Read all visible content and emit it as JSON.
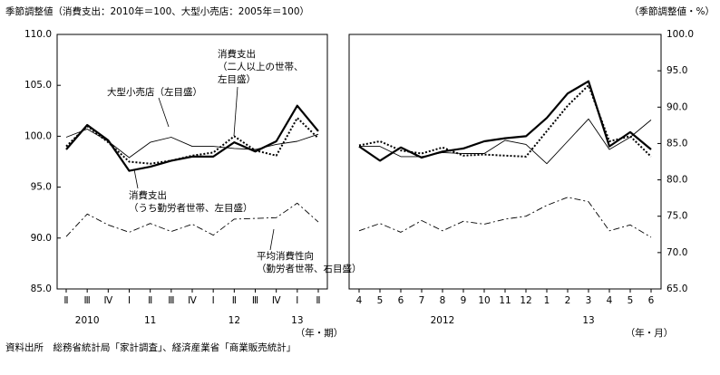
{
  "chart_data": [
    {
      "type": "line",
      "title": "季節調整値（消費支出：2010年＝100、大型小売店：2005年＝100）",
      "x_unit": "（年・期）",
      "categories": [
        "Ⅱ",
        "Ⅲ",
        "Ⅳ",
        "Ⅰ",
        "Ⅱ",
        "Ⅲ",
        "Ⅳ",
        "Ⅰ",
        "Ⅱ",
        "Ⅲ",
        "Ⅳ",
        "Ⅰ",
        "Ⅱ"
      ],
      "year_labels": [
        {
          "label": "2010",
          "at": 1
        },
        {
          "label": "11",
          "at": 4
        },
        {
          "label": "12",
          "at": 8
        },
        {
          "label": "13",
          "at": 11
        }
      ],
      "ylim": [
        85,
        110
      ],
      "yticks": [
        {
          "value": 85,
          "label": "85.0"
        },
        {
          "value": 90,
          "label": "90.0"
        },
        {
          "value": 95,
          "label": "95.0"
        },
        {
          "value": 100,
          "label": "100.0"
        },
        {
          "value": 105,
          "label": "105.0"
        },
        {
          "value": 110,
          "label": "110.0"
        }
      ],
      "y2lim": [
        65,
        100
      ],
      "series": [
        {
          "name": [
            "大型小売店（左目盛）"
          ],
          "color": "#000000",
          "style": "solid",
          "width": 0.9,
          "values": [
            99.9,
            100.7,
            99.5,
            97.9,
            99.4,
            99.9,
            99.0,
            99.0,
            98.8,
            98.7,
            99.2,
            99.5,
            100.2
          ]
        },
        {
          "name": [
            "消費支出",
            "（二人以上の世帯、",
            "左目盛）"
          ],
          "color": "#000000",
          "style": "dotted",
          "width": 2,
          "values": [
            99.0,
            101.0,
            99.4,
            97.5,
            97.3,
            97.6,
            98.1,
            98.4,
            100.0,
            98.6,
            98.1,
            101.8,
            99.8
          ]
        },
        {
          "name": [
            "消費支出",
            "（うち勤労者世帯、左目盛）"
          ],
          "color": "#000000",
          "style": "solid",
          "width": 2.2,
          "values": [
            98.7,
            101.1,
            99.6,
            96.6,
            97.0,
            97.6,
            98.0,
            98.0,
            99.4,
            98.5,
            99.5,
            103.0,
            100.5
          ]
        },
        {
          "name": [
            "平均消費性向",
            "（勤労者世帯、右目盛）"
          ],
          "color": "#000000",
          "style": "dashdot",
          "width": 0.9,
          "axis": "y2",
          "values": [
            72.2,
            75.3,
            73.8,
            72.8,
            74.0,
            72.9,
            73.9,
            72.4,
            74.6,
            74.7,
            74.8,
            76.8,
            74.2
          ]
        }
      ]
    },
    {
      "type": "line",
      "y2_label": "（季節調整値・%）",
      "x_unit": "（年・月）",
      "categories": [
        "4",
        "5",
        "6",
        "7",
        "8",
        "9",
        "10",
        "11",
        "12",
        "1",
        "2",
        "3",
        "4",
        "5",
        "6"
      ],
      "year_labels": [
        {
          "label": "2012",
          "at": 4
        },
        {
          "label": "13",
          "at": 11
        }
      ],
      "ylim": [
        85,
        110
      ],
      "y2lim": [
        65,
        100
      ],
      "y2ticks": [
        {
          "value": 65,
          "label": "65.0"
        },
        {
          "value": 70,
          "label": "70.0"
        },
        {
          "value": 75,
          "label": "75.0"
        },
        {
          "value": 80,
          "label": "80.0"
        },
        {
          "value": 85,
          "label": "85.0"
        },
        {
          "value": 90,
          "label": "90.0"
        },
        {
          "value": 95,
          "label": "95.0"
        },
        {
          "value": 100,
          "label": "100.0"
        }
      ],
      "series": [
        {
          "color": "#000000",
          "style": "solid",
          "width": 0.9,
          "values": [
            99.0,
            99.0,
            98.0,
            98.0,
            98.4,
            98.3,
            98.3,
            99.6,
            99.2,
            97.3,
            99.5,
            101.7,
            98.7,
            99.9,
            101.6
          ]
        },
        {
          "color": "#000000",
          "style": "dotted",
          "width": 2,
          "values": [
            99.1,
            99.5,
            98.6,
            98.3,
            98.9,
            98.1,
            98.2,
            98.1,
            98.0,
            100.5,
            103.0,
            105.0,
            99.5,
            100.0,
            98.0
          ]
        },
        {
          "color": "#000000",
          "style": "solid",
          "width": 2.2,
          "values": [
            99.0,
            97.6,
            98.9,
            97.9,
            98.5,
            98.8,
            99.5,
            99.8,
            100.0,
            101.8,
            104.2,
            105.4,
            99.0,
            100.4,
            98.7
          ]
        },
        {
          "color": "#000000",
          "style": "dashdot",
          "width": 0.9,
          "axis": "y2",
          "values": [
            73.0,
            74.0,
            72.8,
            74.4,
            73.0,
            74.3,
            73.9,
            74.6,
            75.0,
            76.5,
            77.6,
            77.0,
            73.0,
            73.8,
            72.1
          ]
        }
      ]
    }
  ],
  "source": "資料出所　総務省統計局「家計調査」、経済産業省「商業販売統計」"
}
